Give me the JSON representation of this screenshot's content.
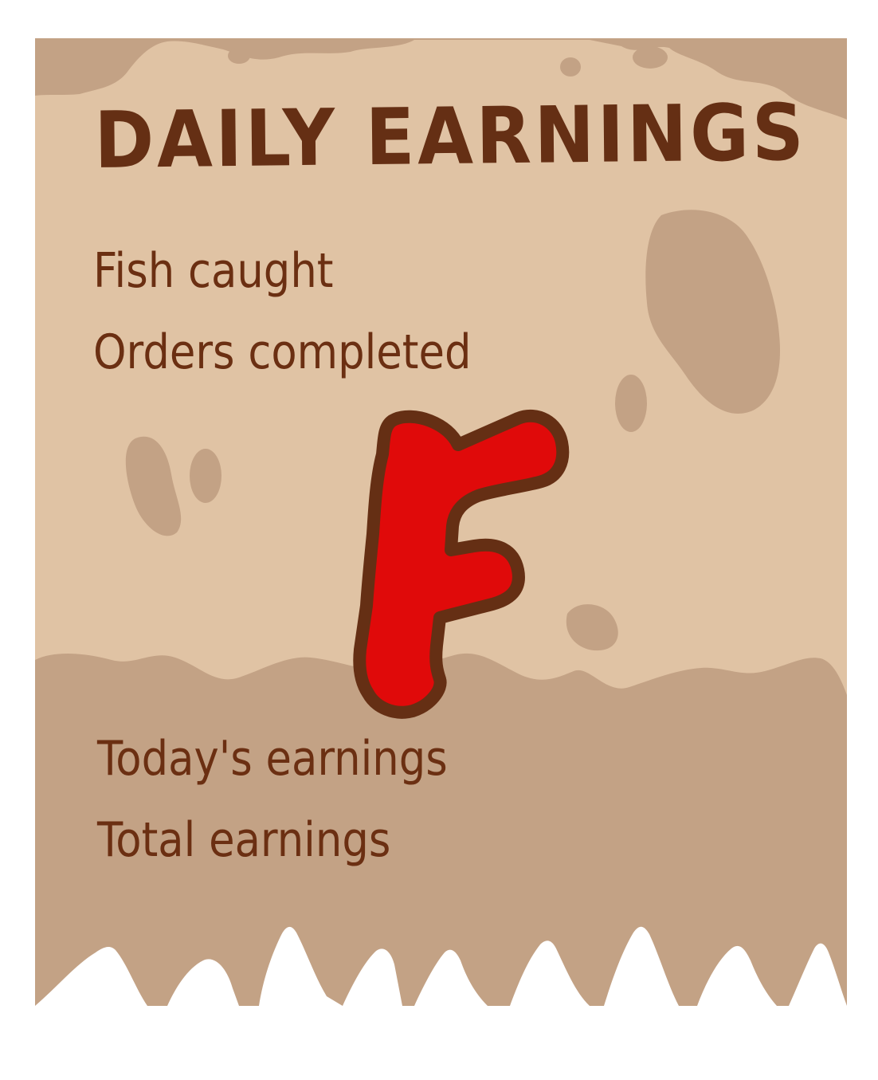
{
  "results_panel": {
    "title": "DAILY EARNINGS",
    "rows": {
      "fish_caught": "Fish caught",
      "orders_completed": "Orders completed",
      "todays_earnings": "Today's earnings",
      "total_earnings": "Total earnings"
    },
    "grade": "F"
  },
  "colors": {
    "paper_light": "#e0c3a4",
    "paper_dark": "#c3a285",
    "text_brown": "#652f14",
    "grade_red": "#e00a0a",
    "grade_outline": "#652f14"
  }
}
